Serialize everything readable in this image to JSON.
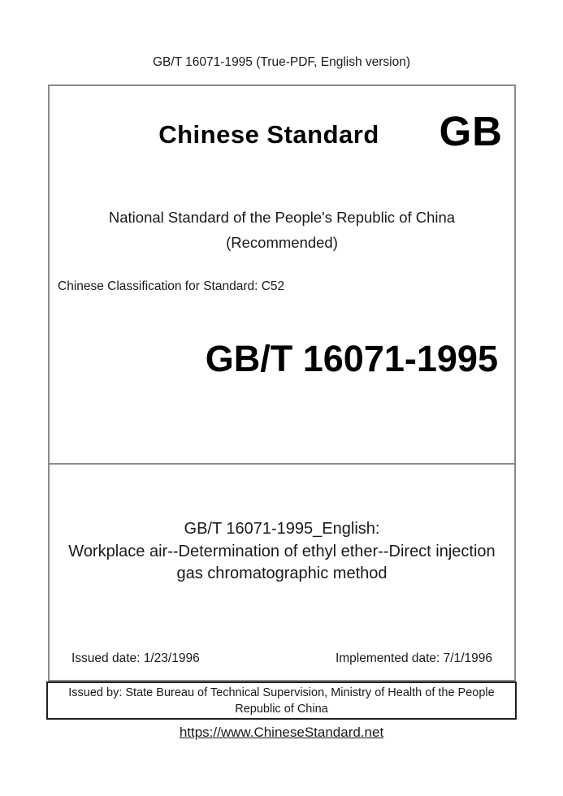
{
  "header": {
    "title": "GB/T 16071-1995 (True-PDF, English version)"
  },
  "cover": {
    "brand_title": "Chinese Standard",
    "brand_logo": "GB",
    "national_line1": "National Standard of the People's Republic of China",
    "national_line2": "(Recommended)",
    "classification": "Chinese Classification for Standard: C52",
    "standard_number": "GB/T 16071-1995",
    "title_lines": [
      "GB/T 16071-1995_English:",
      "Workplace air--Determination of ethyl ether--Direct injection",
      "gas chromatographic method"
    ],
    "issued_date": "Issued date: 1/23/1996",
    "implemented_date": "Implemented date: 7/1/1996",
    "issued_by_line1": "Issued by: State Bureau of Technical Supervision, Ministry of Health of the People",
    "issued_by_line2": "Republic of China"
  },
  "footer": {
    "link": "https://www.ChineseStandard.net"
  },
  "colors": {
    "text": "#1a1a1a",
    "main_box_border": "#8a8a8a",
    "issued_box_border": "#1f1f1f",
    "background": "#ffffff"
  }
}
